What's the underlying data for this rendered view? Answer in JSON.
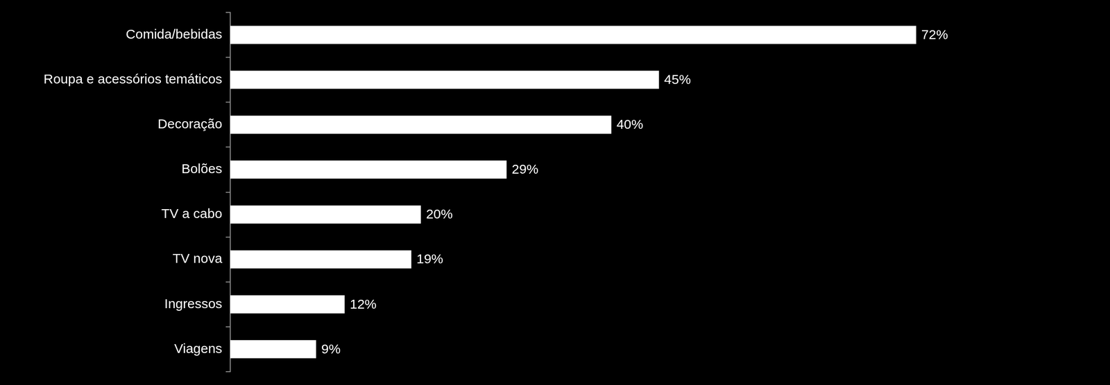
{
  "chart_data": {
    "type": "bar",
    "orientation": "horizontal",
    "categories": [
      "Comida/bebidas",
      "Roupa e acessórios temáticos",
      "Decoração",
      "Bolões",
      "TV a cabo",
      "TV nova",
      "Ingressos",
      "Viagens"
    ],
    "values": [
      72,
      45,
      40,
      29,
      20,
      19,
      12,
      9
    ],
    "value_labels": [
      "72%",
      "45%",
      "40%",
      "29%",
      "20%",
      "19%",
      "12%",
      "9%"
    ],
    "color": "#ffffff",
    "data_labels": true,
    "tick_labels": "y",
    "grid": false
  }
}
